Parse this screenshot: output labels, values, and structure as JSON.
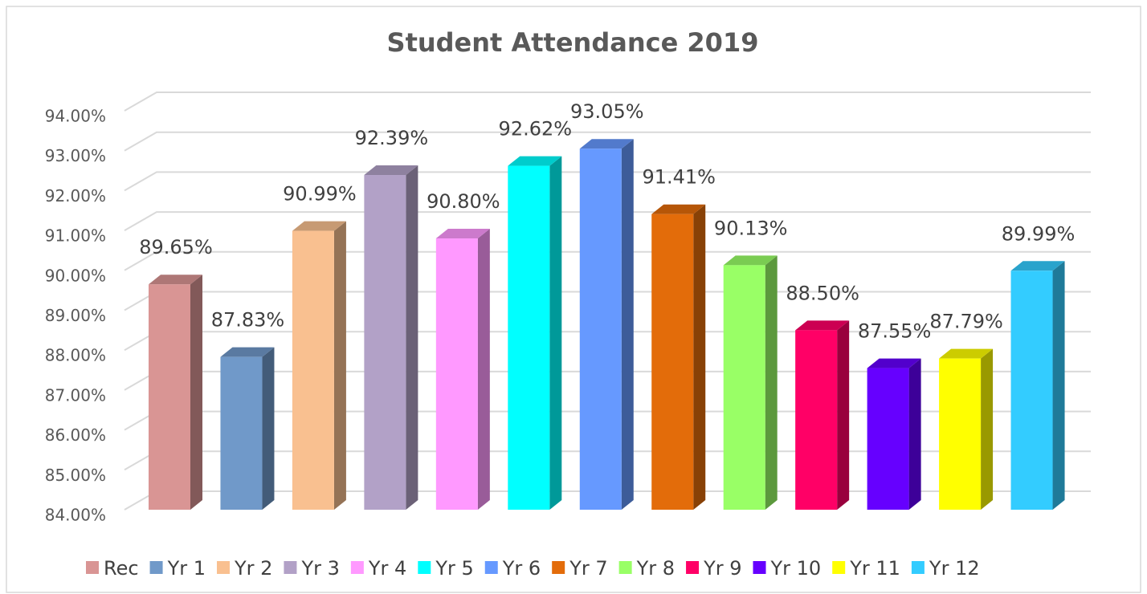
{
  "chart_data": {
    "type": "bar",
    "title": "Student Attendance 2019",
    "ylim": [
      84,
      94
    ],
    "yticks": [
      {
        "value": 84,
        "label": "84.00%"
      },
      {
        "value": 85,
        "label": "85.00%"
      },
      {
        "value": 86,
        "label": "86.00%"
      },
      {
        "value": 87,
        "label": "87.00%"
      },
      {
        "value": 88,
        "label": "88.00%"
      },
      {
        "value": 89,
        "label": "89.00%"
      },
      {
        "value": 90,
        "label": "90.00%"
      },
      {
        "value": 91,
        "label": "91.00%"
      },
      {
        "value": 92,
        "label": "92.00%"
      },
      {
        "value": 93,
        "label": "93.00%"
      },
      {
        "value": 94,
        "label": "94.00%"
      }
    ],
    "grid": true,
    "legend": "bottom",
    "series": [
      {
        "name": "Rec",
        "color": "#d99594",
        "values": [
          89.65
        ],
        "value_labels": [
          "89.65%"
        ]
      },
      {
        "name": "Yr 1",
        "color": "#7099c9",
        "values": [
          87.83
        ],
        "value_labels": [
          "87.83%"
        ]
      },
      {
        "name": "Yr 2",
        "color": "#f9c090",
        "values": [
          90.99
        ],
        "value_labels": [
          "90.99%"
        ]
      },
      {
        "name": "Yr 3",
        "color": "#b2a1c7",
        "values": [
          92.39
        ],
        "value_labels": [
          "92.39%"
        ]
      },
      {
        "name": "Yr 4",
        "color": "#ff99ff",
        "values": [
          90.8
        ],
        "value_labels": [
          "90.80%"
        ]
      },
      {
        "name": "Yr 5",
        "color": "#00ffff",
        "values": [
          92.62
        ],
        "value_labels": [
          "92.62%"
        ]
      },
      {
        "name": "Yr 6",
        "color": "#6699ff",
        "values": [
          93.05
        ],
        "value_labels": [
          "93.05%"
        ]
      },
      {
        "name": "Yr 7",
        "color": "#e36c0a",
        "values": [
          91.41
        ],
        "value_labels": [
          "91.41%"
        ]
      },
      {
        "name": "Yr 8",
        "color": "#99ff66",
        "values": [
          90.13
        ],
        "value_labels": [
          "90.13%"
        ]
      },
      {
        "name": "Yr 9",
        "color": "#ff0066",
        "values": [
          88.5
        ],
        "value_labels": [
          "88.50%"
        ]
      },
      {
        "name": "Yr 10",
        "color": "#6600ff",
        "values": [
          87.55
        ],
        "value_labels": [
          "87.55%"
        ]
      },
      {
        "name": "Yr 11",
        "color": "#ffff00",
        "values": [
          87.79
        ],
        "value_labels": [
          "87.79%"
        ]
      },
      {
        "name": "Yr 12",
        "color": "#33ccff",
        "values": [
          89.99
        ],
        "value_labels": [
          "89.99%"
        ]
      }
    ]
  }
}
